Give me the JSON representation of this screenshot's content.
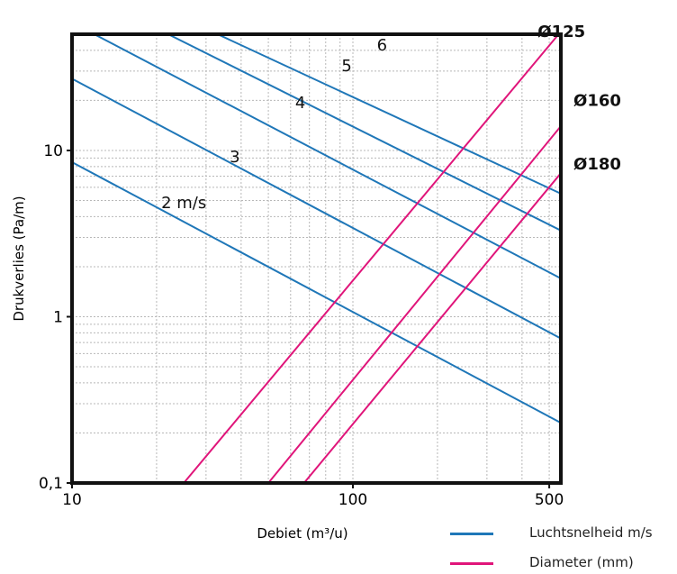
{
  "colors": {
    "velocity": "#1f77b8",
    "diameter": "#e0157a",
    "grid": "#b8b8b8",
    "axis": "#111111"
  },
  "chart_data": {
    "type": "line",
    "x_scale": "log",
    "y_scale": "log",
    "xlim": [
      10,
      550
    ],
    "ylim": [
      0.1,
      50
    ],
    "xlabel": "Debiet (m³/u)",
    "ylabel": "Drukverlies (Pa/m)",
    "x_ticks": [
      {
        "value": 10,
        "label": "10"
      },
      {
        "value": 100,
        "label": "100"
      },
      {
        "value": 500,
        "label": "500"
      }
    ],
    "y_ticks": [
      {
        "value": 0.1,
        "label": "0,1"
      },
      {
        "value": 1,
        "label": "1"
      },
      {
        "value": 10,
        "label": "10"
      }
    ],
    "grid": true,
    "legend": [
      {
        "label": "Luchtsnelheid m/s",
        "color_key": "velocity"
      },
      {
        "label": "Diameter (mm)",
        "color_key": "diameter"
      }
    ],
    "velocity_lines": [
      {
        "label": "2 m/s",
        "points": [
          [
            10,
            8.5
          ],
          [
            550,
            0.23
          ]
        ]
      },
      {
        "label": "3",
        "points": [
          [
            10,
            27
          ],
          [
            550,
            0.74
          ]
        ]
      },
      {
        "label": "4",
        "points": [
          [
            12,
            50
          ],
          [
            550,
            1.7
          ]
        ]
      },
      {
        "label": "5",
        "points": [
          [
            22,
            50
          ],
          [
            550,
            3.3
          ]
        ]
      },
      {
        "label": "6",
        "points": [
          [
            33,
            50
          ],
          [
            550,
            5.5
          ]
        ]
      }
    ],
    "diameter_lines": [
      {
        "label": "Ø125",
        "points": [
          [
            25,
            0.1
          ],
          [
            540,
            50
          ]
        ]
      },
      {
        "label": "Ø160",
        "points": [
          [
            50,
            0.1
          ],
          [
            550,
            14
          ]
        ]
      },
      {
        "label": "Ø180",
        "points": [
          [
            67,
            0.1
          ],
          [
            550,
            7.3
          ]
        ]
      }
    ]
  }
}
